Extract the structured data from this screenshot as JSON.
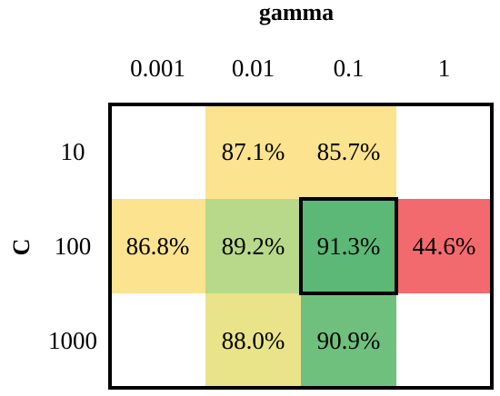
{
  "chart_data": {
    "type": "heatmap",
    "xlabel": "gamma",
    "ylabel": "C",
    "x_categories": [
      "0.001",
      "0.01",
      "0.1",
      "1"
    ],
    "y_categories": [
      "10",
      "100",
      "1000"
    ],
    "cells": [
      [
        null,
        87.1,
        85.7,
        null
      ],
      [
        86.8,
        89.2,
        91.3,
        44.6
      ],
      [
        null,
        88.0,
        90.9,
        null
      ]
    ],
    "cell_labels": [
      [
        "",
        "87.1%",
        "85.7%",
        ""
      ],
      [
        "86.8%",
        "89.2%",
        "91.3%",
        "44.6%"
      ],
      [
        "",
        "88.0%",
        "90.9%",
        ""
      ]
    ],
    "cell_colors": [
      [
        null,
        "#fbe38f",
        "#fbe38f",
        null
      ],
      [
        "#fbe38f",
        "#b8d98a",
        "#5cb877",
        "#f36a6e"
      ],
      [
        null,
        "#e9e38a",
        "#6fc07d",
        null
      ]
    ],
    "highlight": {
      "row": 1,
      "col": 2
    },
    "legend": "none",
    "grid": false
  }
}
